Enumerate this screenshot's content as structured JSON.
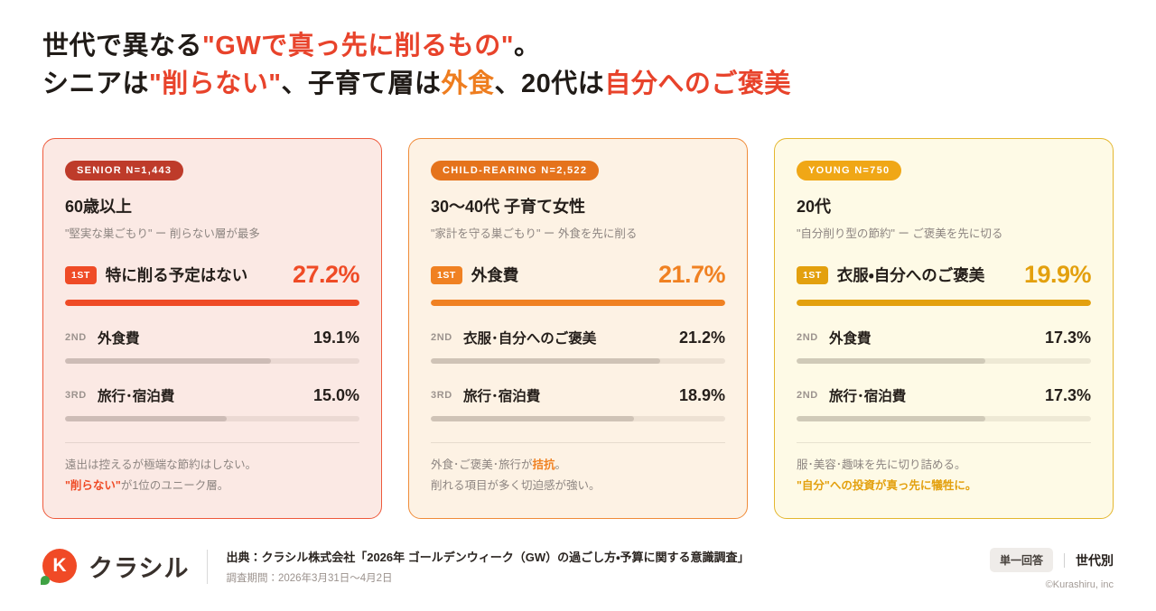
{
  "title": {
    "line1": [
      {
        "t": "世代で異なる"
      },
      {
        "t": "\"GWで真っ先に削るもの\""
      },
      {
        "t": "。"
      }
    ],
    "line2": [
      {
        "t": "シニアは"
      },
      {
        "t": "\"削らない\""
      },
      {
        "t": "、子育て層は"
      },
      {
        "t": "外食"
      },
      {
        "t": "、20代は"
      },
      {
        "t": "自分へのご褒美"
      }
    ]
  },
  "colors": {
    "text_dark": "#201B17",
    "red": "#E8432B",
    "orange": "#EE7D1F",
    "gold": "#E3A00E"
  },
  "cards": [
    {
      "id": "senior",
      "badge": "SENIOR N=1,443",
      "title": "60歳以上",
      "subtitle": "\"堅実な巣ごもり\" ー 削らない層が最多",
      "colors": {
        "bg": "#FBE9E4",
        "border": "#EE5A3C",
        "badge_bg": "#BE3B2A",
        "accent": "#EF4B26"
      },
      "ranks": [
        {
          "rank": "1ST",
          "label": "特に削る予定はない",
          "value": "27.2%",
          "fill": "100%"
        },
        {
          "rank": "2ND",
          "label": "外食費",
          "value": "19.1%",
          "fill": "70%"
        },
        {
          "rank": "3RD",
          "label": "旅行･宿泊費",
          "value": "15.0%",
          "fill": "55%"
        }
      ],
      "notes": [
        [
          {
            "t": "遠出は控えるが極端な節約はしない。"
          }
        ],
        [
          {
            "t": "\"削らない\""
          },
          {
            "t": "が1位のユニーク層。"
          }
        ]
      ]
    },
    {
      "id": "child-rearing",
      "badge": "CHILD-REARING N=2,522",
      "title": "30〜40代 子育て女性",
      "subtitle": "\"家計を守る巣ごもり\" ー 外食を先に削る",
      "colors": {
        "bg": "#FDF2E4",
        "border": "#F08C3A",
        "badge_bg": "#E5731C",
        "accent": "#F08122"
      },
      "ranks": [
        {
          "rank": "1ST",
          "label": "外食費",
          "value": "21.7%",
          "fill": "100%"
        },
        {
          "rank": "2ND",
          "label": "衣服･自分へのご褒美",
          "value": "21.2%",
          "fill": "78%"
        },
        {
          "rank": "3RD",
          "label": "旅行･宿泊費",
          "value": "18.9%",
          "fill": "69%"
        }
      ],
      "notes": [
        [
          {
            "t": "外食･ご褒美･旅行が"
          },
          {
            "t": "拮抗"
          },
          {
            "t": "。"
          }
        ],
        [
          {
            "t": "削れる項目が多く切迫感が強い。"
          }
        ]
      ]
    },
    {
      "id": "young",
      "badge": "YOUNG N=750",
      "title": "20代",
      "subtitle": "\"自分削り型の節約\" ー ご褒美を先に切る",
      "colors": {
        "bg": "#FEFAE6",
        "border": "#E4B72F",
        "badge_bg": "#F0A716",
        "accent": "#E3A00E"
      },
      "ranks": [
        {
          "rank": "1ST",
          "label": "衣服・自分へのご褒美",
          "value": "19.9%",
          "fill": "100%"
        },
        {
          "rank": "2ND",
          "label": "外食費",
          "value": "17.3%",
          "fill": "64%"
        },
        {
          "rank": "2ND",
          "label": "旅行･宿泊費",
          "value": "17.3%",
          "fill": "64%"
        }
      ],
      "notes": [
        [
          {
            "t": "服･美容･趣味を先に切り詰める。"
          }
        ],
        [
          {
            "t": "\"自分\"への投資が真っ先に犠牲に。"
          }
        ]
      ]
    }
  ],
  "footer": {
    "logo_letter": "K",
    "logo_text": "クラシル",
    "source_bold": "出典：クラシル株式会社「2026年 ゴールデンウィーク（GW）の過ごし方・予算に関する意識調査」",
    "source_sub": "調査期間：2026年3月31日〜4月2日",
    "answer_type": "単一回答",
    "segment": "世代別",
    "copyright": "©Kurashiru, inc"
  },
  "chart_data": [
    {
      "type": "bar",
      "title": "60歳以上（SENIOR N=1,443）GWで真っ先に削るもの",
      "categories": [
        "特に削る予定はない",
        "外食費",
        "旅行･宿泊費"
      ],
      "values": [
        27.2,
        19.1,
        15.0
      ],
      "ranks": [
        "1ST",
        "2ND",
        "3RD"
      ],
      "unit": "%",
      "note": "遠出は控えるが極端な節約はしない。\"削らない\"が1位のユニーク層。"
    },
    {
      "type": "bar",
      "title": "30〜40代 子育て女性（CHILD-REARING N=2,522）",
      "categories": [
        "外食費",
        "衣服･自分へのご褒美",
        "旅行･宿泊費"
      ],
      "values": [
        21.7,
        21.2,
        18.9
      ],
      "ranks": [
        "1ST",
        "2ND",
        "3RD"
      ],
      "unit": "%",
      "note": "外食･ご褒美･旅行が拮抗。削れる項目が多く切迫感が強い。"
    },
    {
      "type": "bar",
      "title": "20代（YOUNG N=750）",
      "categories": [
        "衣服・自分へのご褒美",
        "外食費",
        "旅行･宿泊費"
      ],
      "values": [
        19.9,
        17.3,
        17.3
      ],
      "ranks": [
        "1ST",
        "2ND",
        "2ND"
      ],
      "unit": "%",
      "note": "服･美容･趣味を先に切り詰める。\"自分\"への投資が真っ先に犠牲に。"
    }
  ]
}
